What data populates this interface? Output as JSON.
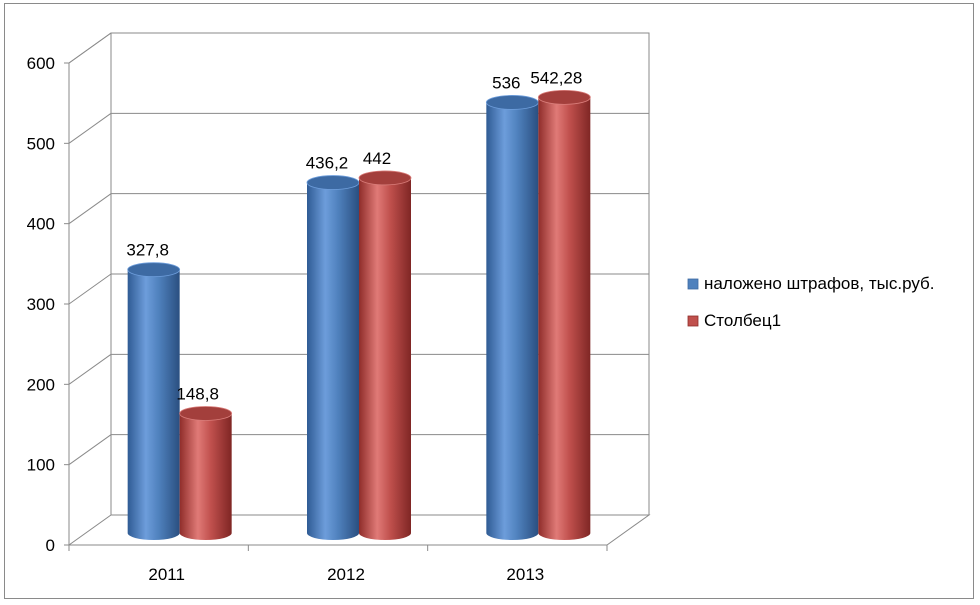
{
  "chart_data": {
    "type": "bar",
    "categories": [
      "2011",
      "2012",
      "2013"
    ],
    "series": [
      {
        "name": "наложено штрафов, тыс.руб.",
        "values": [
          327.8,
          436.2,
          536
        ],
        "labels": [
          "327,8",
          "436,2",
          "536"
        ],
        "color": "#4f81bd"
      },
      {
        "name": "Столбец1",
        "values": [
          148.8,
          442,
          542.28
        ],
        "labels": [
          "148,8",
          "442",
          "542,28"
        ],
        "color": "#c0504d"
      }
    ],
    "yticks": [
      "0",
      "100",
      "200",
      "300",
      "400",
      "500",
      "600"
    ],
    "ylim": [
      0,
      600
    ],
    "grid": true,
    "legend": "right",
    "style": "3d-cylinder"
  }
}
